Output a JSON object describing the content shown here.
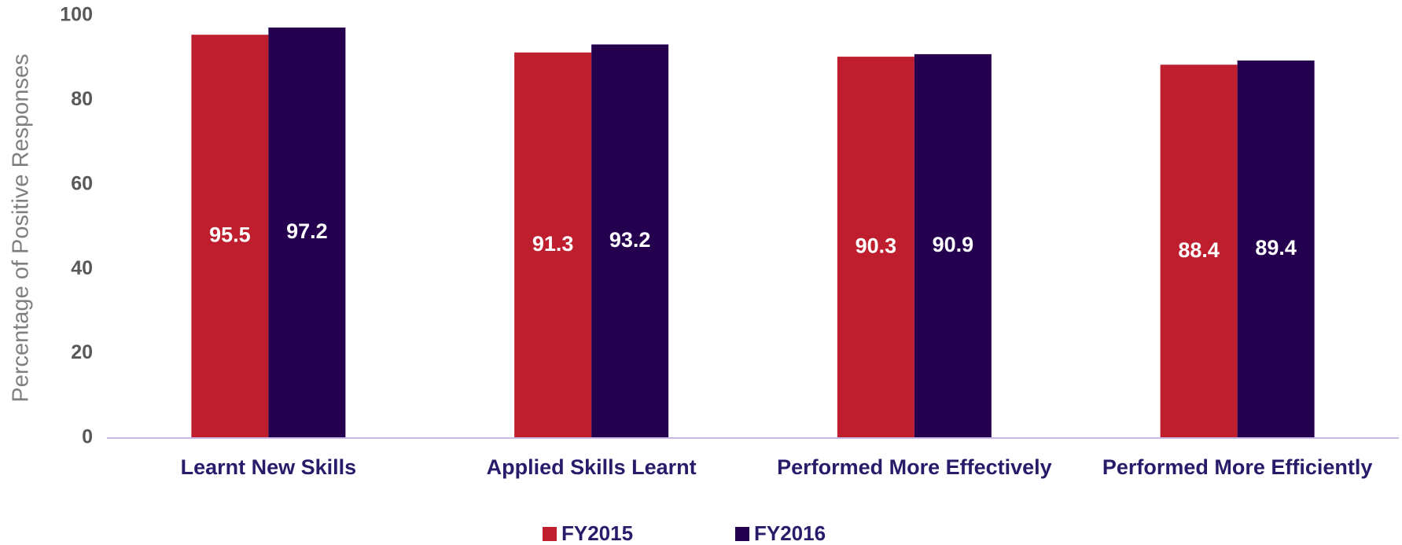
{
  "chart_data": {
    "type": "bar",
    "y_label": "Percentage of Positive Responses",
    "categories": [
      "Learnt New Skills",
      "Applied Skills Learnt",
      "Performed More Effectively",
      "Performed More Efficiently"
    ],
    "series": [
      {
        "name": "FY2015",
        "color": "#be1e2d",
        "values": [
          95.5,
          91.3,
          90.3,
          88.4
        ]
      },
      {
        "name": "FY2016",
        "color": "#24004f",
        "values": [
          97.2,
          93.2,
          90.9,
          89.4
        ]
      }
    ],
    "ylim": [
      0,
      100
    ],
    "yticks": [
      0,
      20,
      40,
      60,
      80,
      100
    ],
    "grid": false,
    "legend": "bottom"
  }
}
